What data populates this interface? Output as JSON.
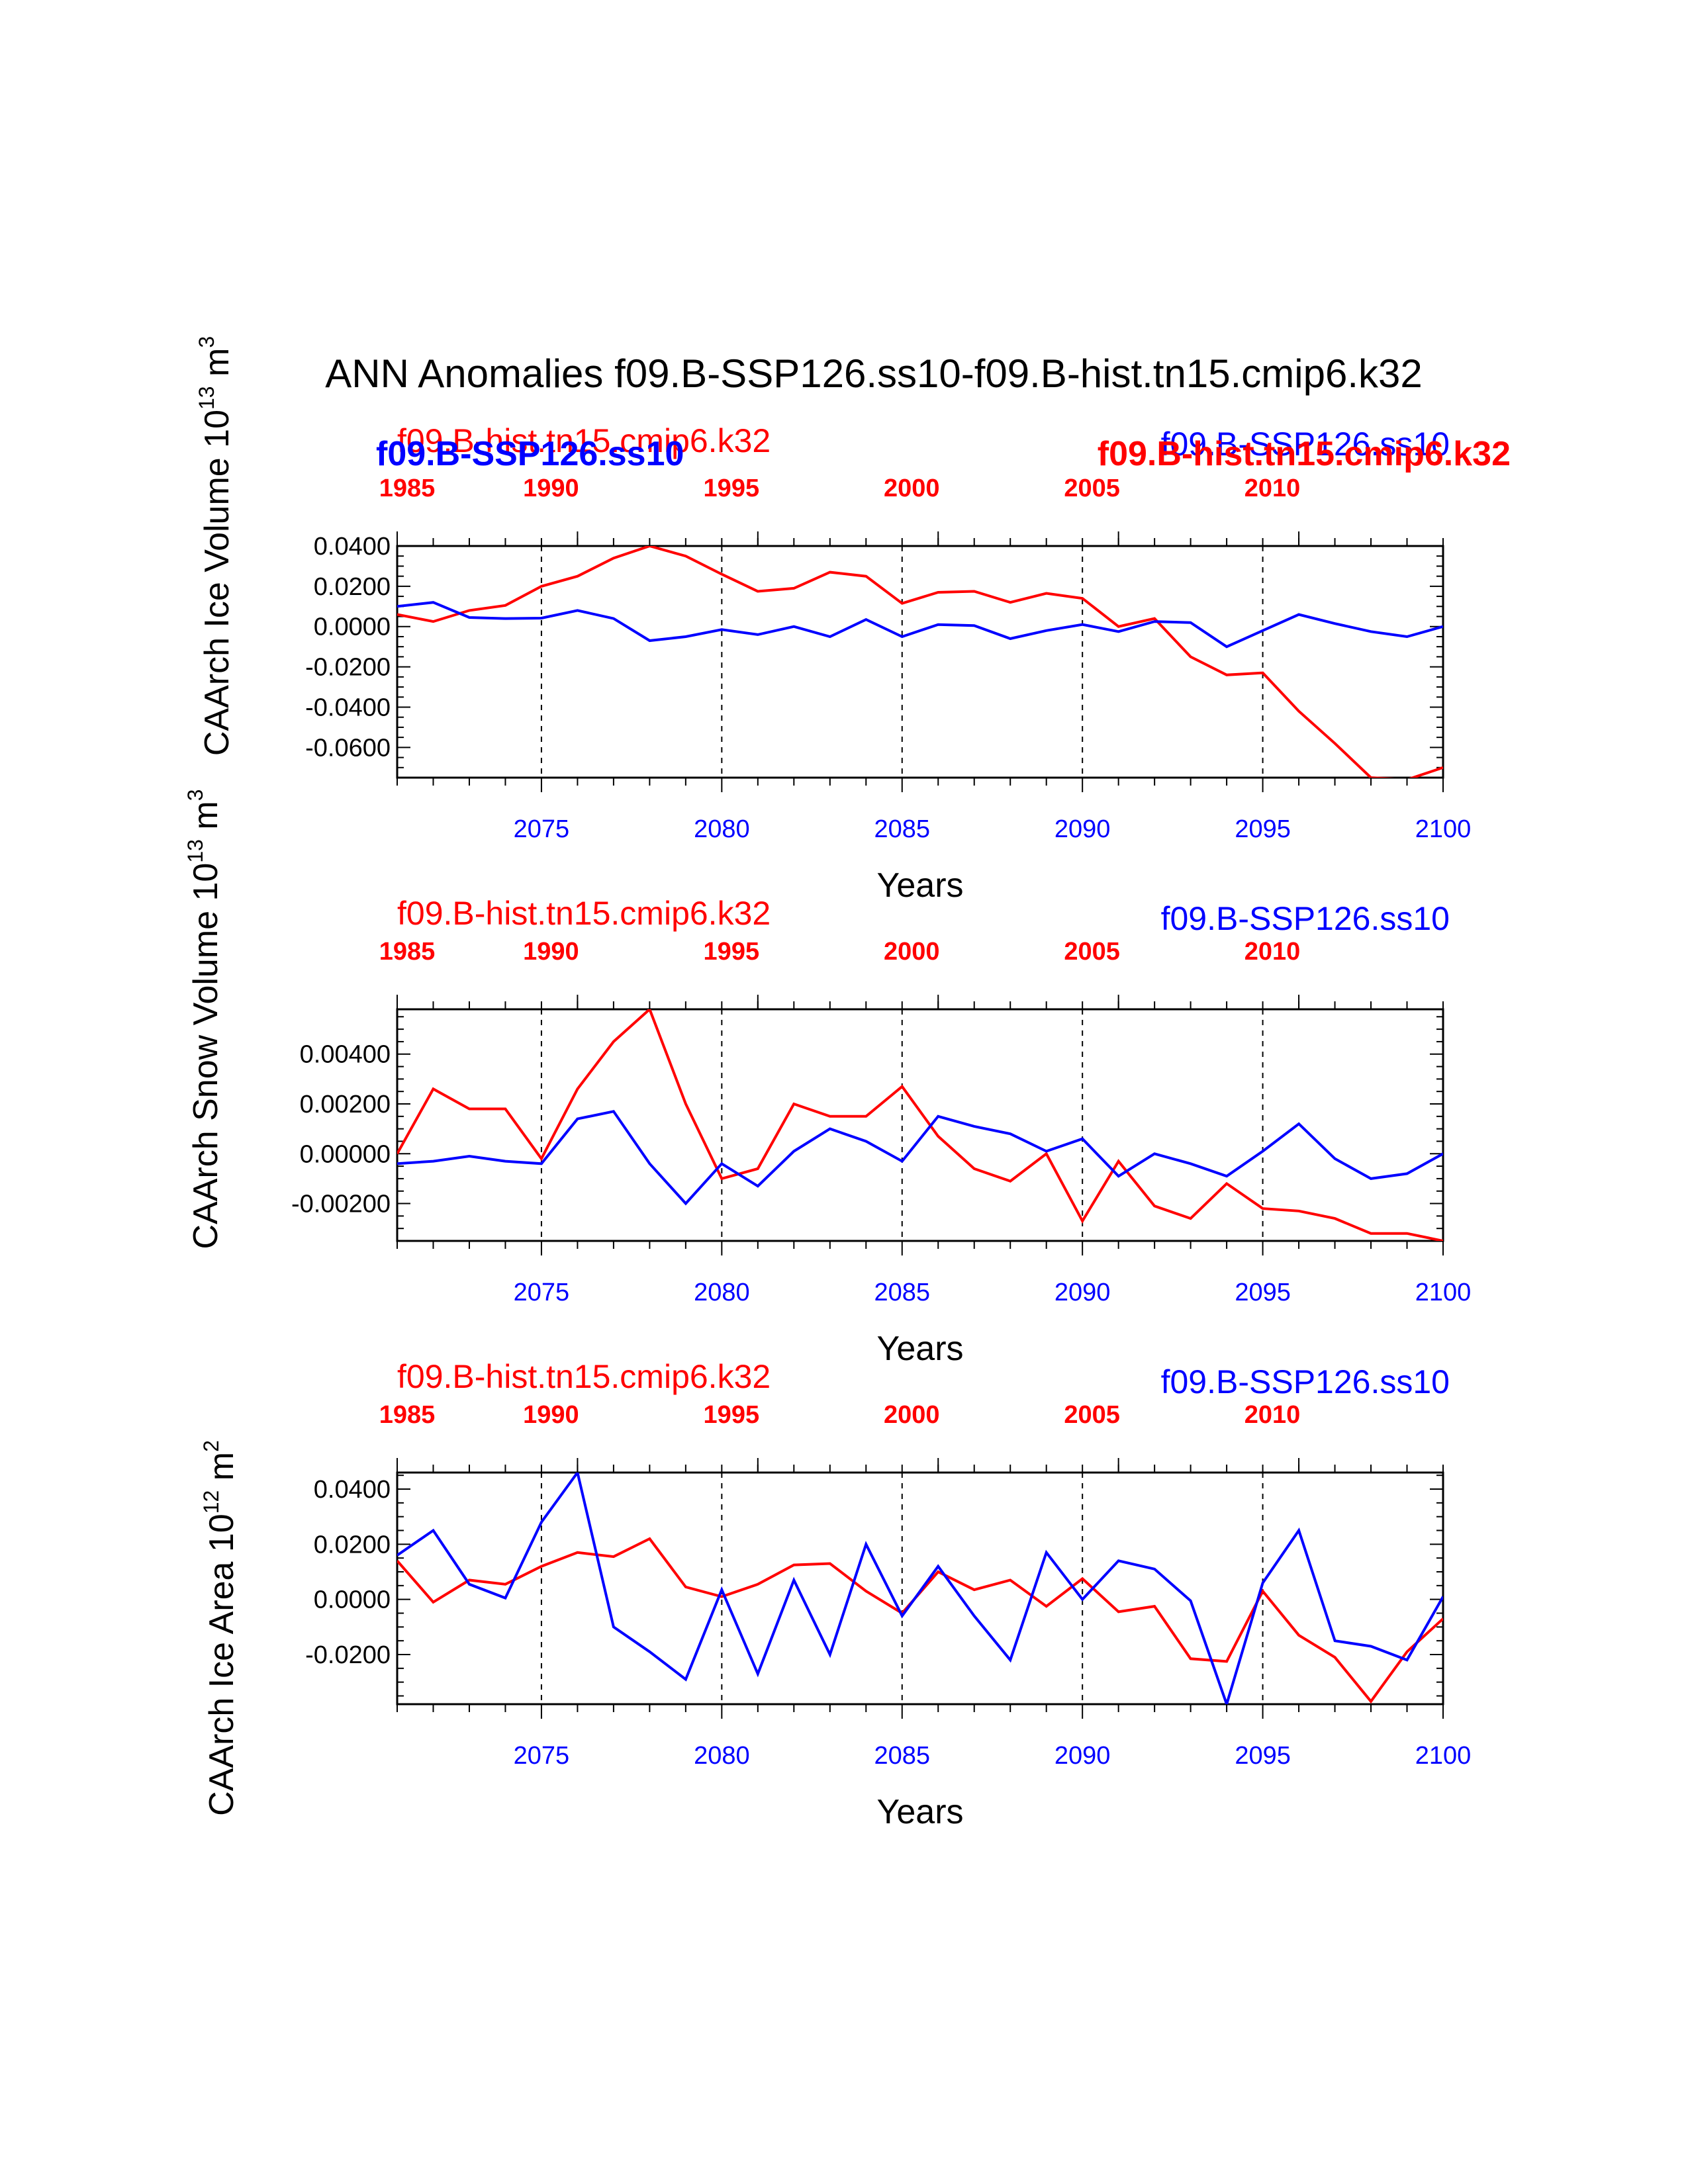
{
  "title": "ANN Anomalies f09.B-SSP126.ss10-f09.B-hist.tn15.cmip6.k32",
  "colors": {
    "case": "#0000ff",
    "control": "#ff0000",
    "axis": "#000000"
  },
  "legend": {
    "control_label": "f09.B-hist.tn15.cmip6.k32",
    "case_label": "f09.B-SSP126.ss10"
  },
  "chart_data": [
    {
      "type": "line",
      "ylabel": "CAArch Ice Volume 10",
      "ylabel_exp": "13",
      "ylabel_unit": " m",
      "ylabel_unit_exp": "3",
      "xlabel": "Years",
      "xlim": [
        2071,
        2100
      ],
      "ylim": [
        -0.075,
        0.04
      ],
      "yticks": [
        0.04,
        0.02,
        0.0,
        -0.02,
        -0.04,
        -0.06
      ],
      "ytick_labels": [
        "0.0400",
        "0.0200",
        "0.0000",
        "-0.0200",
        "-0.0400",
        "-0.0600"
      ],
      "x_bottom_ticks": [
        2075,
        2080,
        2085,
        2090,
        2095,
        2100
      ],
      "x_bottom_labels": [
        "2075",
        "2080",
        "2085",
        "2090",
        "2095",
        "2100"
      ],
      "x_top_labels": [
        "1985",
        "1990",
        "1995",
        "2000",
        "2005",
        "2010"
      ],
      "legend_overlap": {
        "red_top": "f09.B-hist.tn15.cmip6.k32",
        "blue_bold": "f09.B-SSP126.ss10",
        "red_bold": "f09.B-hist.tn15.cmip6.k32",
        "blue_top": "f09.B-SSP126.ss10"
      },
      "x": [
        2071,
        2072,
        2073,
        2074,
        2075,
        2076,
        2077,
        2078,
        2079,
        2080,
        2081,
        2082,
        2083,
        2084,
        2085,
        2086,
        2087,
        2088,
        2089,
        2090,
        2091,
        2092,
        2093,
        2094,
        2095,
        2096,
        2097,
        2098,
        2099,
        2100
      ],
      "series": [
        {
          "name": "f09.B-SSP126.ss10",
          "color": "#0000ff",
          "values": [
            0.01,
            0.012,
            0.0045,
            0.004,
            0.0042,
            0.008,
            0.004,
            -0.007,
            -0.005,
            -0.0015,
            -0.004,
            0.0,
            -0.005,
            0.0035,
            -0.005,
            0.001,
            0.0005,
            -0.006,
            -0.002,
            0.001,
            -0.0025,
            0.0025,
            0.002,
            -0.01,
            -0.002,
            0.006,
            0.0015,
            -0.0025,
            -0.005,
            0.0
          ]
        },
        {
          "name": "f09.B-hist.tn15.cmip6.k32",
          "color": "#ff0000",
          "values": [
            0.006,
            0.0025,
            0.008,
            0.0105,
            0.02,
            0.025,
            0.034,
            0.04,
            0.035,
            0.026,
            0.0175,
            0.019,
            0.027,
            0.025,
            0.0115,
            0.017,
            0.0175,
            0.012,
            0.0165,
            0.014,
            0.0,
            0.004,
            -0.015,
            -0.024,
            -0.023,
            -0.042,
            -0.058,
            -0.075,
            -0.076,
            -0.07
          ]
        }
      ]
    },
    {
      "type": "line",
      "ylabel": "CAArch Snow Volume 10",
      "ylabel_exp": "13",
      "ylabel_unit": " m",
      "ylabel_unit_exp": "3",
      "xlabel": "Years",
      "xlim": [
        2071,
        2100
      ],
      "ylim": [
        -0.0035,
        0.0058
      ],
      "yticks": [
        0.004,
        0.002,
        0.0,
        -0.002
      ],
      "ytick_labels": [
        "0.00400",
        "0.00200",
        "0.00000",
        "-0.00200"
      ],
      "x_bottom_ticks": [
        2075,
        2080,
        2085,
        2090,
        2095,
        2100
      ],
      "x_bottom_labels": [
        "2075",
        "2080",
        "2085",
        "2090",
        "2095",
        "2100"
      ],
      "x_top_labels": [
        "1985",
        "1990",
        "1995",
        "2000",
        "2005",
        "2010"
      ],
      "control_label": "f09.B-hist.tn15.cmip6.k32",
      "case_label": "f09.B-SSP126.ss10",
      "x": [
        2071,
        2072,
        2073,
        2074,
        2075,
        2076,
        2077,
        2078,
        2079,
        2080,
        2081,
        2082,
        2083,
        2084,
        2085,
        2086,
        2087,
        2088,
        2089,
        2090,
        2091,
        2092,
        2093,
        2094,
        2095,
        2096,
        2097,
        2098,
        2099,
        2100
      ],
      "series": [
        {
          "name": "f09.B-SSP126.ss10",
          "color": "#0000ff",
          "values": [
            -0.0004,
            -0.0003,
            -0.0001,
            -0.0003,
            -0.0004,
            0.0014,
            0.0017,
            -0.0004,
            -0.002,
            -0.0004,
            -0.0013,
            0.0001,
            0.001,
            0.0005,
            -0.0003,
            0.0015,
            0.0011,
            0.0008,
            0.0001,
            0.0006,
            -0.0009,
            0.0,
            -0.0004,
            -0.0009,
            0.0001,
            0.0012,
            -0.0002,
            -0.001,
            -0.0008,
            0.0
          ]
        },
        {
          "name": "f09.B-hist.tn15.cmip6.k32",
          "color": "#ff0000",
          "values": [
            0.0,
            0.0026,
            0.0018,
            0.0018,
            -0.0002,
            0.0026,
            0.0045,
            0.0058,
            0.002,
            -0.001,
            -0.0006,
            0.002,
            0.0015,
            0.0015,
            0.0027,
            0.0007,
            -0.0006,
            -0.0011,
            0.0,
            -0.0027,
            -0.0003,
            -0.0021,
            -0.0026,
            -0.0012,
            -0.0022,
            -0.0023,
            -0.0026,
            -0.0032,
            -0.0032,
            -0.0035
          ]
        }
      ]
    },
    {
      "type": "line",
      "ylabel": "CAArch Ice Area 10",
      "ylabel_exp": "12",
      "ylabel_unit": " m",
      "ylabel_unit_exp": "2",
      "xlabel": "Years",
      "xlim": [
        2071,
        2100
      ],
      "ylim": [
        -0.038,
        0.046
      ],
      "yticks": [
        0.04,
        0.02,
        0.0,
        -0.02
      ],
      "ytick_labels": [
        "0.0400",
        "0.0200",
        "0.0000",
        "-0.0200"
      ],
      "x_bottom_ticks": [
        2075,
        2080,
        2085,
        2090,
        2095,
        2100
      ],
      "x_bottom_labels": [
        "2075",
        "2080",
        "2085",
        "2090",
        "2095",
        "2100"
      ],
      "x_top_labels": [
        "1985",
        "1990",
        "1995",
        "2000",
        "2005",
        "2010"
      ],
      "control_label": "f09.B-hist.tn15.cmip6.k32",
      "case_label": "f09.B-SSP126.ss10",
      "x": [
        2071,
        2072,
        2073,
        2074,
        2075,
        2076,
        2077,
        2078,
        2079,
        2080,
        2081,
        2082,
        2083,
        2084,
        2085,
        2086,
        2087,
        2088,
        2089,
        2090,
        2091,
        2092,
        2093,
        2094,
        2095,
        2096,
        2097,
        2098,
        2099,
        2100
      ],
      "series": [
        {
          "name": "f09.B-SSP126.ss10",
          "color": "#0000ff",
          "values": [
            0.016,
            0.025,
            0.0055,
            0.0005,
            0.028,
            0.046,
            -0.01,
            -0.019,
            -0.029,
            0.0035,
            -0.027,
            0.007,
            -0.02,
            0.02,
            -0.006,
            0.012,
            -0.006,
            -0.022,
            0.017,
            0.0,
            0.014,
            0.011,
            -0.0005,
            -0.038,
            0.006,
            0.025,
            -0.015,
            -0.017,
            -0.022,
            0.001
          ]
        },
        {
          "name": "f09.B-hist.tn15.cmip6.k32",
          "color": "#ff0000",
          "values": [
            0.014,
            -0.001,
            0.007,
            0.0055,
            0.012,
            0.017,
            0.0155,
            0.022,
            0.0045,
            0.001,
            0.0055,
            0.0125,
            0.013,
            0.003,
            -0.005,
            0.01,
            0.0035,
            0.007,
            -0.0025,
            0.0075,
            -0.0045,
            -0.0025,
            -0.0215,
            -0.0225,
            0.003,
            -0.013,
            -0.021,
            -0.037,
            -0.019,
            -0.007
          ]
        }
      ]
    }
  ]
}
